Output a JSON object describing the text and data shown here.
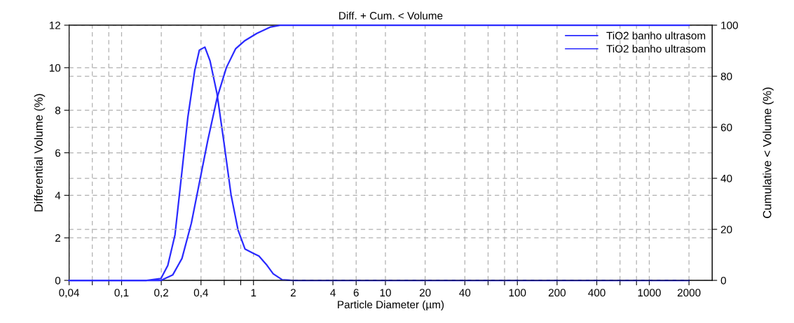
{
  "chart_data": {
    "type": "line",
    "title": "Diff. + Cum. < Volume",
    "xlabel": "Particle Diameter (µm)",
    "ylabel": "Differential Volume (%)",
    "y2label": "Cumulative < Volume (%)",
    "log": "x",
    "grid": true,
    "legend": "top right",
    "line_style": "solid",
    "marker": "none",
    "xlim": [
      0.04,
      3000
    ],
    "ylim": [
      0,
      12
    ],
    "y2lim": [
      0,
      100
    ],
    "xticks": [
      {
        "value": 0.04,
        "label": "0,04"
      },
      {
        "value": 0.06,
        "label": null
      },
      {
        "value": 0.08,
        "label": null
      },
      {
        "value": 0.1,
        "label": "0,1"
      },
      {
        "value": 0.2,
        "label": "0,2"
      },
      {
        "value": 0.4,
        "label": "0,4"
      },
      {
        "value": 0.6,
        "label": null
      },
      {
        "value": 0.8,
        "label": null
      },
      1,
      2,
      4,
      6,
      10,
      20,
      40,
      {
        "value": 60,
        "label": null
      },
      {
        "value": 80,
        "label": null
      },
      100,
      200,
      400,
      {
        "value": 600,
        "label": null
      },
      {
        "value": 800,
        "label": null
      },
      1000,
      2000
    ],
    "yticks": [
      0,
      2,
      4,
      6,
      8,
      10,
      12
    ],
    "y2ticks": [
      0,
      20,
      40,
      60,
      80,
      100
    ],
    "series": [
      {
        "name": "TiO2 banho ultrasom",
        "color": "#2a2aff",
        "x": [
          0.04,
          0.155,
          0.199,
          0.224,
          0.254,
          0.287,
          0.318,
          0.359,
          0.389,
          0.428,
          0.468,
          0.529,
          0.598,
          0.676,
          0.764,
          0.863,
          1.0,
          1.1,
          1.25,
          1.41,
          1.65,
          1.99,
          2000
        ],
        "values": [
          0,
          0,
          0.09,
          0.7,
          2.14,
          5.13,
          7.67,
          9.89,
          10.83,
          10.97,
          10.33,
          8.78,
          6.46,
          4.02,
          2.36,
          1.47,
          1.27,
          1.14,
          0.75,
          0.31,
          0.03,
          0,
          0
        ]
      },
      {
        "name": "TiO2 banho ultrasom",
        "color": "#2a2aff",
        "axis": "y2",
        "x": [
          0.04,
          0.199,
          0.244,
          0.287,
          0.338,
          0.398,
          0.45,
          0.529,
          0.623,
          0.733,
          0.863,
          1.06,
          1.35,
          1.59,
          2000
        ],
        "values": [
          0,
          0,
          2.1,
          8.6,
          22.4,
          40.9,
          54.8,
          71.4,
          83.4,
          90.8,
          94.0,
          96.8,
          99.3,
          100,
          100
        ]
      }
    ]
  }
}
